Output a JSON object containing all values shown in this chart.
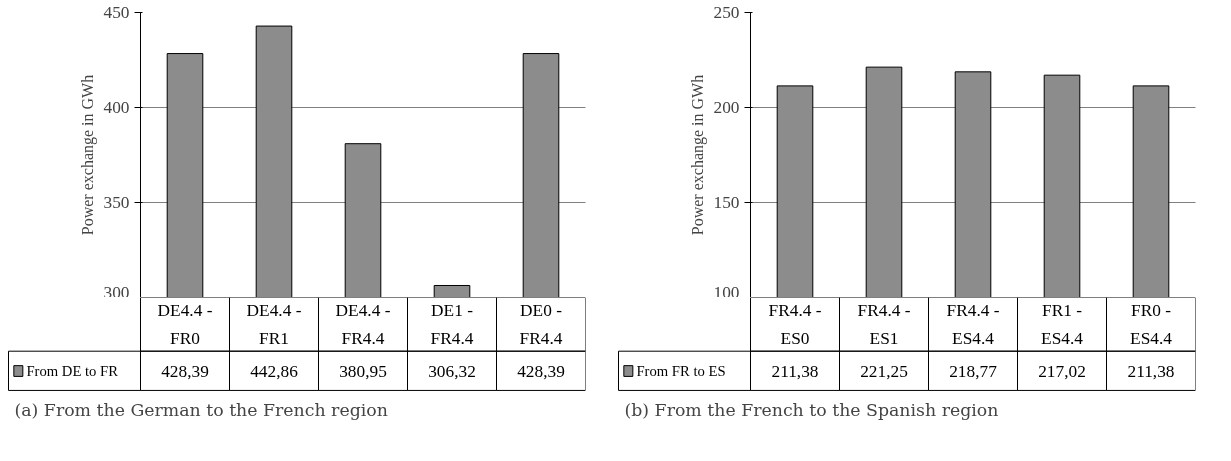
{
  "chart_data": [
    {
      "type": "bar",
      "title": "(a) From the German to the French region",
      "ylabel": "Power exchange in GWh",
      "categories": [
        "DE4.4 -\nFR0",
        "DE4.4 -\nFR1",
        "DE4.4 -\nFR4.4",
        "DE1 -\nFR4.4",
        "DE0 -\nFR4.4"
      ],
      "series": [
        {
          "name": "From DE to FR",
          "color": "#8c8c8c",
          "values": [
            428.39,
            442.86,
            380.95,
            306.32,
            428.39
          ],
          "value_labels": [
            "428,39",
            "442,86",
            "380,95",
            "306,32",
            "428,39"
          ]
        }
      ],
      "ylim": [
        300,
        450
      ],
      "yticks": [
        300,
        350,
        400,
        450
      ],
      "grid": "y"
    },
    {
      "type": "bar",
      "title": "(b) From the French to the Spanish region",
      "ylabel": "Power exchange in GWh",
      "categories": [
        "FR4.4 -\nES0",
        "FR4.4 -\nES1",
        "FR4.4 -\nES4.4",
        "FR1 -\nES4.4",
        "FR0 -\nES4.4"
      ],
      "series": [
        {
          "name": "From FR to ES",
          "color": "#8c8c8c",
          "values": [
            211.38,
            221.25,
            218.77,
            217.02,
            211.38
          ],
          "value_labels": [
            "211,38",
            "221,25",
            "218,77",
            "217,02",
            "211,38"
          ]
        }
      ],
      "ylim": [
        100,
        250
      ],
      "yticks": [
        100,
        150,
        200,
        250
      ],
      "grid": "y"
    }
  ]
}
